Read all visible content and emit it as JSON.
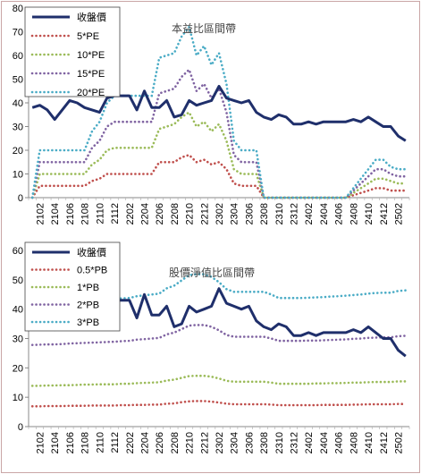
{
  "chart_data": [
    {
      "type": "line",
      "title": "本益比區間帶",
      "xlabel": "",
      "ylabel": "",
      "ylim": [
        0,
        80
      ],
      "yticks": [
        0,
        10,
        20,
        30,
        40,
        50,
        60,
        70,
        80
      ],
      "x": [
        "2101",
        "2102",
        "2103",
        "2104",
        "2105",
        "2106",
        "2107",
        "2108",
        "2109",
        "2110",
        "2111",
        "2112",
        "2201",
        "2202",
        "2203",
        "2204",
        "2205",
        "2206",
        "2207",
        "2208",
        "2209",
        "2210",
        "2211",
        "2212",
        "2301",
        "2302",
        "2303",
        "2304",
        "2305",
        "2306",
        "2307",
        "2308",
        "2309",
        "2310",
        "2311",
        "2312",
        "2401",
        "2402",
        "2403",
        "2404",
        "2405",
        "2406",
        "2407",
        "2408",
        "2409",
        "2410",
        "2411",
        "2412",
        "2501",
        "2502",
        "2503"
      ],
      "xtick_labels": [
        "2102",
        "2104",
        "2106",
        "2108",
        "2110",
        "2112",
        "2202",
        "2204",
        "2206",
        "2208",
        "2210",
        "2212",
        "2302",
        "2304",
        "2306",
        "2308",
        "2310",
        "2312",
        "2402",
        "2404",
        "2406",
        "2408",
        "2410",
        "2412",
        "2502"
      ],
      "legend_position": "top-left",
      "series": [
        {
          "name": "收盤價",
          "color": "#1f2f6b",
          "style": "solid",
          "values": [
            38,
            39,
            37,
            33,
            37,
            41,
            40,
            38,
            37,
            36,
            42,
            43,
            43,
            43,
            37,
            45,
            38,
            38,
            41,
            34,
            35,
            41,
            39,
            40,
            41,
            47,
            42,
            41,
            40,
            41,
            36,
            34,
            33,
            35,
            34,
            31,
            31,
            32,
            31,
            32,
            32,
            32,
            32,
            33,
            32,
            34,
            32,
            30,
            30,
            26,
            24
          ]
        },
        {
          "name": "5*PE",
          "color": "#c0504d",
          "style": "dotted",
          "values": [
            0,
            5,
            5,
            5,
            5,
            5,
            5,
            5,
            7,
            8,
            10,
            10,
            10,
            10,
            10,
            10,
            10,
            15,
            15,
            15,
            17,
            18,
            15,
            16,
            14,
            15,
            12,
            6,
            5,
            5,
            5,
            0,
            0,
            0,
            0,
            0,
            0,
            0,
            0,
            0,
            0,
            0,
            0,
            1,
            2,
            3,
            4,
            4,
            3,
            3,
            3
          ]
        },
        {
          "name": "10*PE",
          "color": "#9bbb59",
          "style": "dotted",
          "values": [
            0,
            10,
            10,
            10,
            10,
            10,
            10,
            10,
            14,
            16,
            20,
            21,
            21,
            21,
            21,
            21,
            21,
            29,
            30,
            31,
            34,
            36,
            30,
            32,
            28,
            31,
            24,
            12,
            10,
            10,
            10,
            0,
            0,
            0,
            0,
            0,
            0,
            0,
            0,
            0,
            0,
            0,
            0,
            2,
            4,
            6,
            8,
            8,
            7,
            6,
            6
          ]
        },
        {
          "name": "15*PE",
          "color": "#8064a2",
          "style": "dotted",
          "values": [
            0,
            15,
            15,
            15,
            15,
            15,
            15,
            15,
            21,
            24,
            30,
            32,
            32,
            32,
            32,
            32,
            32,
            44,
            45,
            46,
            51,
            54,
            45,
            48,
            42,
            46,
            36,
            18,
            15,
            15,
            15,
            0,
            0,
            0,
            0,
            0,
            0,
            0,
            0,
            0,
            0,
            0,
            0,
            3,
            6,
            9,
            12,
            12,
            10,
            9,
            9
          ]
        },
        {
          "name": "20*PE",
          "color": "#4bacc6",
          "style": "dotted",
          "values": [
            0,
            20,
            20,
            20,
            20,
            20,
            20,
            20,
            28,
            32,
            40,
            43,
            43,
            43,
            43,
            43,
            43,
            59,
            60,
            61,
            68,
            72,
            60,
            64,
            56,
            61,
            48,
            24,
            20,
            20,
            20,
            0,
            0,
            0,
            0,
            0,
            0,
            0,
            0,
            0,
            0,
            0,
            0,
            4,
            8,
            12,
            16,
            16,
            13,
            12,
            12
          ]
        }
      ]
    },
    {
      "type": "line",
      "title": "股價淨值比區間帶",
      "xlabel": "",
      "ylabel": "",
      "ylim": [
        0,
        60
      ],
      "yticks": [
        0,
        10,
        20,
        30,
        40,
        50,
        60
      ],
      "x": [
        "2101",
        "2102",
        "2103",
        "2104",
        "2105",
        "2106",
        "2107",
        "2108",
        "2109",
        "2110",
        "2111",
        "2112",
        "2201",
        "2202",
        "2203",
        "2204",
        "2205",
        "2206",
        "2207",
        "2208",
        "2209",
        "2210",
        "2211",
        "2212",
        "2301",
        "2302",
        "2303",
        "2304",
        "2305",
        "2306",
        "2307",
        "2308",
        "2309",
        "2310",
        "2311",
        "2312",
        "2401",
        "2402",
        "2403",
        "2404",
        "2405",
        "2406",
        "2407",
        "2408",
        "2409",
        "2410",
        "2411",
        "2412",
        "2501",
        "2502",
        "2503"
      ],
      "xtick_labels": [
        "2102",
        "2104",
        "2106",
        "2108",
        "2110",
        "2112",
        "2202",
        "2204",
        "2206",
        "2208",
        "2210",
        "2212",
        "2302",
        "2304",
        "2306",
        "2308",
        "2310",
        "2312",
        "2402",
        "2404",
        "2406",
        "2408",
        "2410",
        "2412",
        "2502"
      ],
      "legend_position": "top-left",
      "series": [
        {
          "name": "收盤價",
          "color": "#1f2f6b",
          "style": "solid",
          "values": [
            38,
            39,
            37,
            33,
            37,
            41,
            40,
            38,
            37,
            36,
            42,
            43,
            43,
            43,
            37,
            45,
            38,
            38,
            41,
            34,
            35,
            41,
            39,
            40,
            41,
            47,
            42,
            41,
            40,
            41,
            36,
            34,
            33,
            35,
            34,
            31,
            31,
            32,
            31,
            32,
            32,
            32,
            32,
            33,
            32,
            34,
            32,
            30,
            30,
            26,
            24
          ]
        },
        {
          "name": "0.5*PB",
          "color": "#c0504d",
          "style": "dotted",
          "values": [
            6.9,
            6.9,
            7,
            7,
            7,
            7.1,
            7.1,
            7.1,
            7.2,
            7.2,
            7.2,
            7.2,
            7.3,
            7.3,
            7.4,
            7.4,
            7.5,
            7.5,
            7.8,
            7.9,
            8.3,
            8.6,
            8.7,
            8.7,
            8.5,
            8.2,
            7.8,
            7.6,
            7.6,
            7.6,
            7.6,
            7.6,
            7.5,
            7.3,
            7.3,
            7.3,
            7.3,
            7.3,
            7.3,
            7.4,
            7.4,
            7.4,
            7.4,
            7.5,
            7.5,
            7.6,
            7.6,
            7.6,
            7.6,
            7.7,
            7.7
          ]
        },
        {
          "name": "1*PB",
          "color": "#9bbb59",
          "style": "dotted",
          "values": [
            13.9,
            13.9,
            14,
            14,
            14.1,
            14.1,
            14.2,
            14.3,
            14.3,
            14.4,
            14.4,
            14.4,
            14.6,
            14.6,
            14.8,
            14.9,
            15,
            15.1,
            15.7,
            16,
            16.6,
            17.2,
            17.3,
            17.3,
            17,
            16.4,
            15.6,
            15.3,
            15.3,
            15.3,
            15.3,
            15.3,
            15,
            14.6,
            14.6,
            14.6,
            14.6,
            14.6,
            14.7,
            14.7,
            14.8,
            14.8,
            14.9,
            15,
            15,
            15.1,
            15.2,
            15.2,
            15.2,
            15.4,
            15.4
          ]
        },
        {
          "name": "2*PB",
          "color": "#8064a2",
          "style": "dotted",
          "values": [
            27.8,
            27.9,
            28,
            28,
            28.1,
            28.3,
            28.4,
            28.5,
            28.6,
            28.7,
            28.8,
            28.9,
            29.1,
            29.2,
            29.6,
            29.8,
            30,
            30.2,
            31.4,
            32,
            33.2,
            34.4,
            34.6,
            34.6,
            34,
            32.8,
            31.2,
            30.6,
            30.6,
            30.6,
            30.6,
            30.6,
            30,
            29.2,
            29.2,
            29.2,
            29.2,
            29.3,
            29.3,
            29.4,
            29.5,
            29.6,
            29.7,
            29.9,
            30,
            30.2,
            30.3,
            30.4,
            30.4,
            30.8,
            30.9
          ]
        },
        {
          "name": "3*PB",
          "color": "#4bacc6",
          "style": "dotted",
          "values": [
            41.7,
            41.8,
            42,
            42,
            42.2,
            42.4,
            42.6,
            42.8,
            42.9,
            43,
            43.2,
            43.3,
            43.7,
            43.8,
            44.4,
            44.7,
            45,
            45.3,
            47.1,
            48,
            49.8,
            51.6,
            51.9,
            51.9,
            51,
            49.2,
            46.8,
            45.9,
            45.9,
            45.9,
            45.9,
            45.9,
            45,
            43.8,
            43.8,
            43.8,
            43.8,
            43.9,
            44,
            44.1,
            44.3,
            44.4,
            44.6,
            44.8,
            45,
            45.3,
            45.5,
            45.6,
            45.6,
            46.2,
            46.4
          ]
        }
      ]
    }
  ]
}
